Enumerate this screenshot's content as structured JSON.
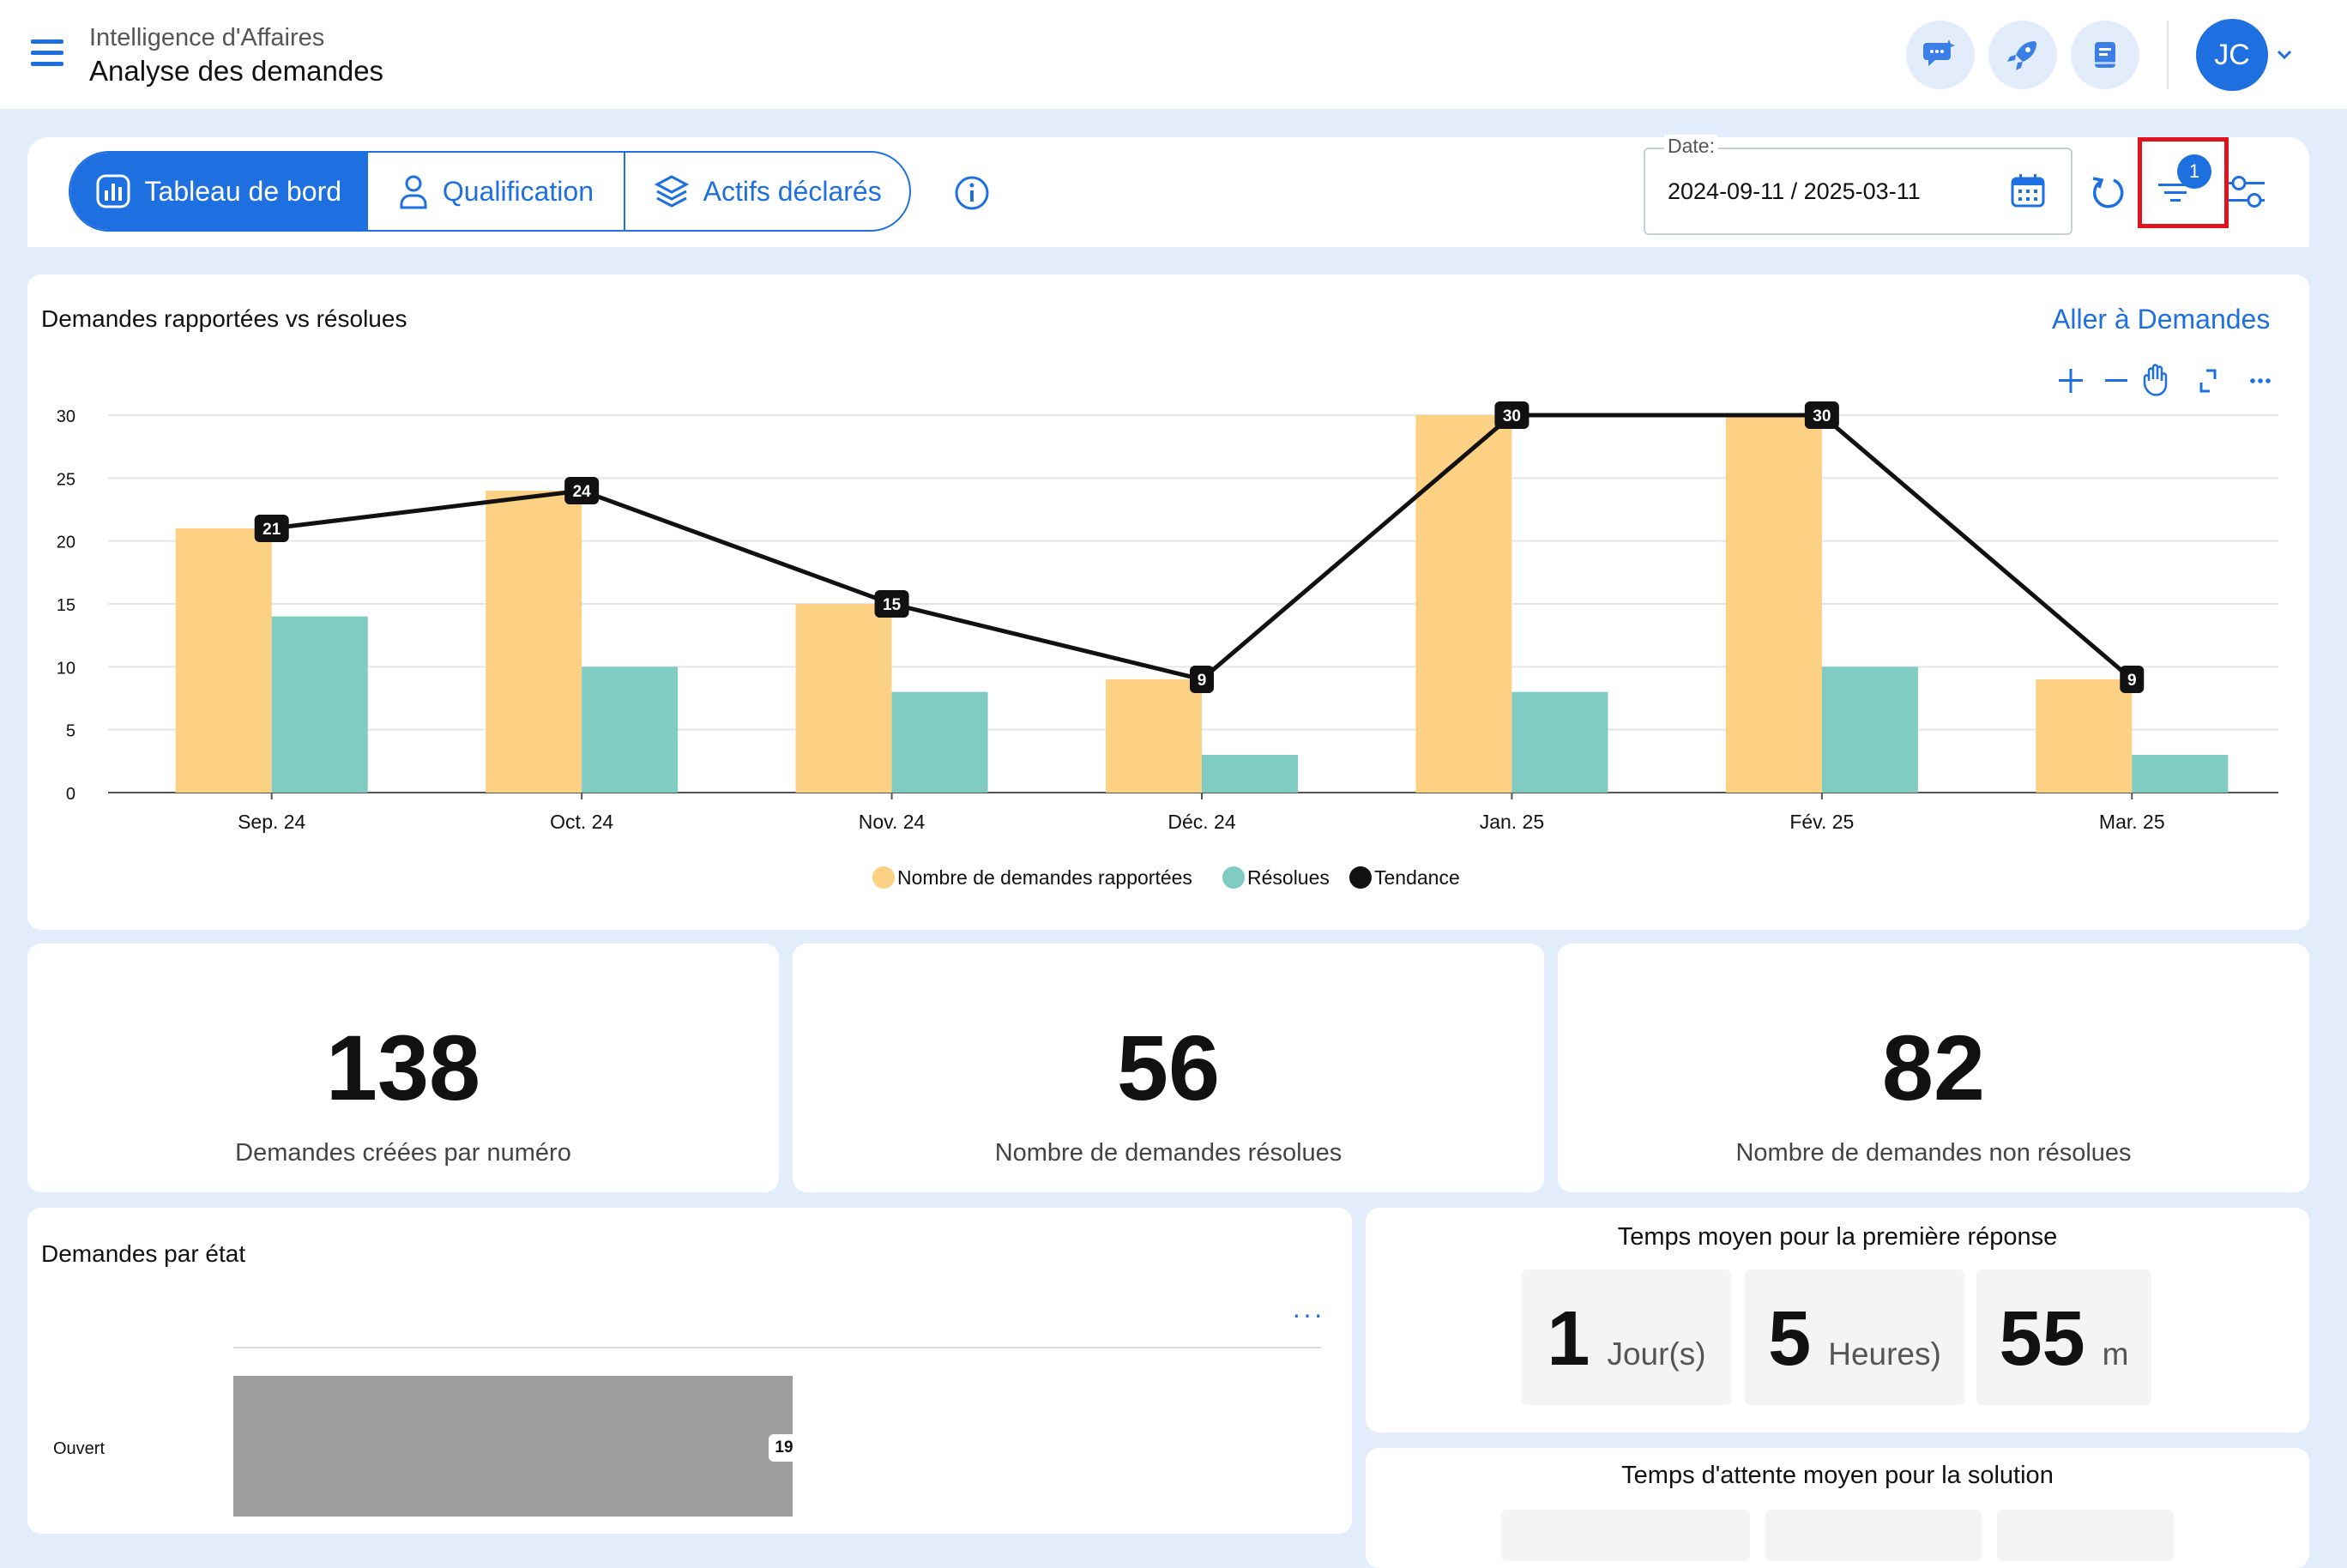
{
  "header": {
    "app_name": "Intelligence d'Affaires",
    "page_title": "Analyse des demandes",
    "user_initials": "JC"
  },
  "tabs": [
    {
      "label": "Tableau de bord",
      "icon": "dashboard-chart-icon",
      "active": true
    },
    {
      "label": "Qualification",
      "icon": "person-icon",
      "active": false
    },
    {
      "label": "Actifs déclarés",
      "icon": "layers-icon",
      "active": false
    }
  ],
  "date_filter": {
    "label": "Date:",
    "value": "2024-09-11 / 2025-03-11"
  },
  "filter_badge": "1",
  "colors": {
    "accent": "#1E6FE0",
    "reported": "#FDD183",
    "resolved": "#80CBC2",
    "trend": "#111111",
    "highlight": "#E0141E"
  },
  "chart": {
    "title": "Demandes rapportées vs résolues",
    "link": "Aller à Demandes",
    "tool_icons": [
      "zoom-in-icon",
      "zoom-out-icon",
      "pan-hand-icon",
      "reset-zoom-icon",
      "more-icon"
    ]
  },
  "chart_data": {
    "type": "bar",
    "categories": [
      "Sep. 24",
      "Oct. 24",
      "Nov. 24",
      "Déc. 24",
      "Jan. 25",
      "Fév. 25",
      "Mar. 25"
    ],
    "series": [
      {
        "name": "Nombre de demandes rapportées",
        "type": "bar",
        "values": [
          21,
          24,
          15,
          9,
          30,
          30,
          9
        ]
      },
      {
        "name": "Résolues",
        "type": "bar",
        "values": [
          14,
          10,
          8,
          3,
          8,
          10,
          3
        ]
      },
      {
        "name": "Tendance",
        "type": "line",
        "values": [
          21,
          24,
          15,
          9,
          30,
          30,
          9
        ]
      }
    ],
    "y_ticks": [
      0,
      5,
      10,
      15,
      20,
      25,
      30
    ],
    "ylim": [
      0,
      30
    ],
    "grid": true,
    "legend_position": "bottom-center"
  },
  "kpis": [
    {
      "value": "138",
      "label": "Demandes créées par numéro"
    },
    {
      "value": "56",
      "label": "Nombre de demandes résolues"
    },
    {
      "value": "82",
      "label": "Nombre de demandes non résolues"
    }
  ],
  "state_chart": {
    "title": "Demandes par état",
    "categories": [
      "Ouvert"
    ],
    "values": [
      19
    ],
    "labels": [
      "19"
    ]
  },
  "first_response": {
    "title": "Temps moyen pour la première réponse",
    "parts": [
      {
        "value": "1",
        "unit": "Jour(s)"
      },
      {
        "value": "5",
        "unit": "Heures)"
      },
      {
        "value": "55",
        "unit": "m"
      }
    ]
  },
  "wait_time": {
    "title": "Temps d'attente moyen pour la solution"
  }
}
